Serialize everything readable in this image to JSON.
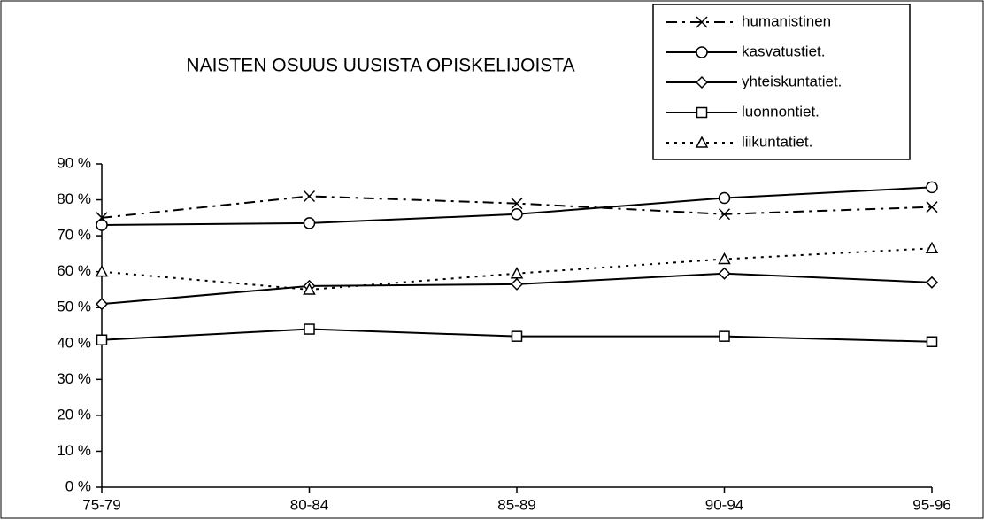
{
  "chart_data": {
    "type": "line",
    "title": "NAISTEN OSUUS UUSISTA OPISKELIJOISTA",
    "categories": [
      "75-79",
      "80-84",
      "85-89",
      "90-94",
      "95-96"
    ],
    "series": [
      {
        "name": "humanistinen",
        "color": "#000000",
        "dash": "dashdot",
        "marker": "x",
        "values": [
          75,
          81,
          79,
          76,
          78
        ]
      },
      {
        "name": "kasvatustiet.",
        "color": "#000000",
        "dash": "solid",
        "marker": "circle",
        "values": [
          73,
          73.5,
          76,
          80.5,
          83.5
        ]
      },
      {
        "name": "yhteiskuntatiet.",
        "color": "#000000",
        "dash": "solid",
        "marker": "diamond",
        "values": [
          51,
          56,
          56.5,
          59.5,
          57
        ]
      },
      {
        "name": "luonnontiet.",
        "color": "#000000",
        "dash": "solid",
        "marker": "square",
        "values": [
          41,
          44,
          42,
          42,
          40.5
        ]
      },
      {
        "name": "liikuntatiet.",
        "color": "#000000",
        "dash": "dotted",
        "marker": "triangle",
        "values": [
          60,
          55,
          59.5,
          63.5,
          66.5
        ]
      }
    ],
    "ylim": [
      0,
      90
    ],
    "yticks": [
      {
        "value": 0,
        "label": "0 %"
      },
      {
        "value": 10,
        "label": "10 %"
      },
      {
        "value": 20,
        "label": "20 %"
      },
      {
        "value": 30,
        "label": "30 %"
      },
      {
        "value": 40,
        "label": "40 %"
      },
      {
        "value": 50,
        "label": "50 %"
      },
      {
        "value": 60,
        "label": "60 %"
      },
      {
        "value": 70,
        "label": "70 %"
      },
      {
        "value": 80,
        "label": "80 %"
      },
      {
        "value": 90,
        "label": "90 %"
      }
    ],
    "legend": "top-right"
  }
}
